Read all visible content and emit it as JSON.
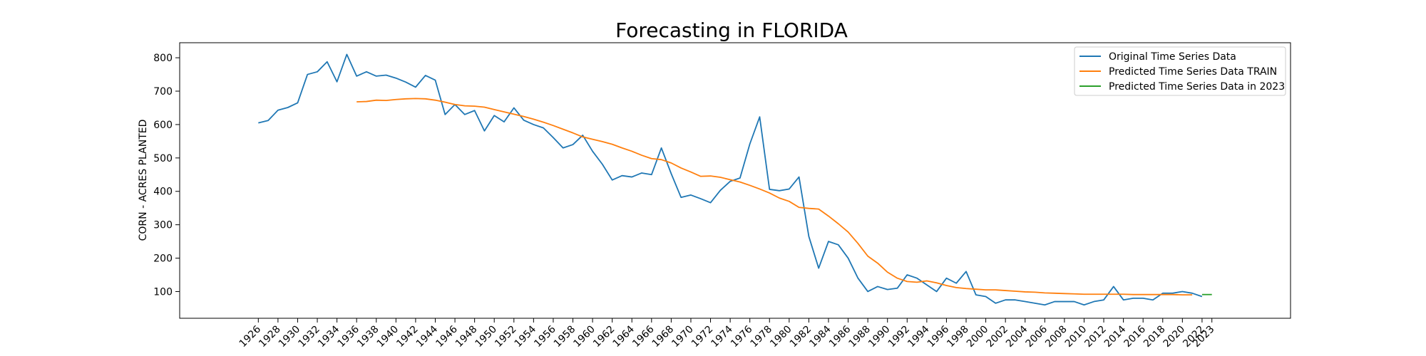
{
  "chart_data": {
    "type": "line",
    "title": "Forecasting in FLORIDA",
    "xlabel": "",
    "ylabel": "CORN - ACRES PLANTED",
    "xlim": [
      1918,
      2031
    ],
    "ylim": [
      20,
      845
    ],
    "yticks": [
      100,
      200,
      300,
      400,
      500,
      600,
      700,
      800
    ],
    "xticks": [
      1926,
      1928,
      1930,
      1932,
      1934,
      1936,
      1938,
      1940,
      1942,
      1944,
      1946,
      1948,
      1950,
      1952,
      1954,
      1956,
      1958,
      1960,
      1962,
      1964,
      1966,
      1968,
      1970,
      1972,
      1974,
      1976,
      1978,
      1980,
      1982,
      1984,
      1986,
      1988,
      1990,
      1992,
      1994,
      1996,
      1998,
      2000,
      2002,
      2004,
      2006,
      2008,
      2010,
      2012,
      2014,
      2016,
      2018,
      2020,
      2022,
      2023
    ],
    "grid": false,
    "legend_position": "top-right",
    "series": [
      {
        "name": "Original Time Series Data",
        "color": "#1f77b4",
        "x": [
          1926,
          1927,
          1928,
          1929,
          1930,
          1931,
          1932,
          1933,
          1934,
          1935,
          1936,
          1937,
          1938,
          1939,
          1940,
          1941,
          1942,
          1943,
          1944,
          1945,
          1946,
          1947,
          1948,
          1949,
          1950,
          1951,
          1952,
          1953,
          1954,
          1955,
          1956,
          1957,
          1958,
          1959,
          1960,
          1961,
          1962,
          1963,
          1964,
          1965,
          1966,
          1967,
          1968,
          1969,
          1970,
          1971,
          1972,
          1973,
          1974,
          1975,
          1976,
          1977,
          1978,
          1979,
          1980,
          1981,
          1982,
          1983,
          1984,
          1985,
          1986,
          1987,
          1988,
          1989,
          1990,
          1991,
          1992,
          1993,
          1994,
          1995,
          1996,
          1997,
          1998,
          1999,
          2000,
          2001,
          2002,
          2003,
          2004,
          2005,
          2006,
          2007,
          2008,
          2009,
          2010,
          2011,
          2012,
          2013,
          2014,
          2015,
          2016,
          2017,
          2018,
          2019,
          2020,
          2021,
          2022
        ],
        "y": [
          605,
          612,
          643,
          651,
          665,
          750,
          758,
          788,
          728,
          810,
          745,
          758,
          745,
          748,
          739,
          727,
          712,
          747,
          733,
          630,
          660,
          630,
          642,
          581,
          627,
          608,
          650,
          613,
          600,
          590,
          561,
          530,
          540,
          568,
          520,
          481,
          434,
          447,
          443,
          455,
          450,
          530,
          453,
          382,
          389,
          378,
          366,
          403,
          430,
          440,
          542,
          623,
          406,
          402,
          407,
          443,
          265,
          170,
          250,
          240,
          200,
          140,
          100,
          115,
          106,
          110,
          150,
          140,
          120,
          100,
          140,
          125,
          160,
          90,
          85,
          65,
          75,
          75,
          70,
          65,
          60,
          70,
          70,
          70,
          60,
          70,
          75,
          115,
          75,
          80,
          80,
          75,
          95,
          95,
          100,
          95,
          85
        ]
      },
      {
        "name": "Predicted Time Series Data TRAIN",
        "color": "#ff7f0e",
        "x": [
          1936,
          1937,
          1938,
          1939,
          1940,
          1941,
          1942,
          1943,
          1944,
          1945,
          1946,
          1947,
          1948,
          1949,
          1950,
          1951,
          1952,
          1953,
          1954,
          1955,
          1956,
          1957,
          1958,
          1959,
          1960,
          1961,
          1962,
          1963,
          1964,
          1965,
          1966,
          1967,
          1968,
          1969,
          1970,
          1971,
          1972,
          1973,
          1974,
          1975,
          1976,
          1977,
          1978,
          1979,
          1980,
          1981,
          1982,
          1983,
          1984,
          1985,
          1986,
          1987,
          1988,
          1989,
          1990,
          1991,
          1992,
          1993,
          1994,
          1995,
          1996,
          1997,
          1998,
          1999,
          2000,
          2001,
          2002,
          2003,
          2004,
          2005,
          2006,
          2007,
          2008,
          2009,
          2010,
          2011,
          2012,
          2013,
          2014,
          2015,
          2016,
          2017,
          2018,
          2019,
          2020,
          2021
        ],
        "y": [
          668,
          669,
          673,
          672,
          675,
          677,
          678,
          677,
          673,
          667,
          660,
          656,
          655,
          652,
          645,
          638,
          631,
          624,
          616,
          607,
          597,
          586,
          575,
          563,
          556,
          549,
          541,
          530,
          520,
          508,
          498,
          495,
          485,
          470,
          458,
          445,
          446,
          442,
          435,
          428,
          418,
          407,
          395,
          380,
          370,
          352,
          349,
          347,
          326,
          303,
          278,
          244,
          206,
          185,
          158,
          140,
          130,
          128,
          132,
          126,
          118,
          112,
          109,
          107,
          105,
          105,
          103,
          101,
          99,
          98,
          96,
          95,
          94,
          93,
          92,
          92,
          92,
          92,
          92,
          91,
          91,
          91,
          91,
          91,
          90,
          90
        ]
      },
      {
        "name": "Predicted Time Series Data in 2023",
        "color": "#2ca02c",
        "x": [
          2022,
          2023
        ],
        "y": [
          91,
          91
        ]
      }
    ]
  }
}
